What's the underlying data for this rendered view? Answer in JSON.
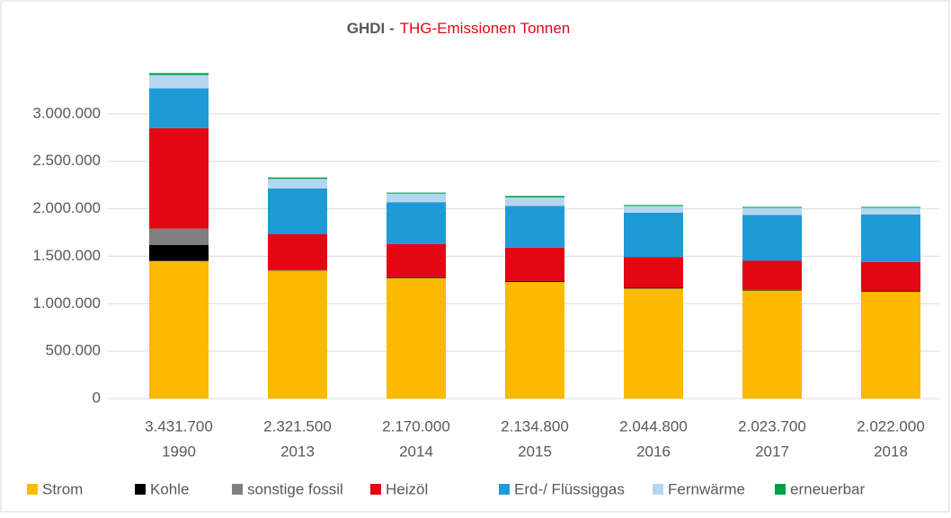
{
  "chart_data": {
    "type": "stacked-bar",
    "title_parts": [
      "GHDI -",
      "THG-Emissionen Tonnen"
    ],
    "categories": [
      [
        "3.431.700",
        "1990"
      ],
      [
        "2.321.500",
        "2013"
      ],
      [
        "2.170.000",
        "2014"
      ],
      [
        "2.134.800",
        "2015"
      ],
      [
        "2.044.800",
        "2016"
      ],
      [
        "2.023.700",
        "2017"
      ],
      [
        "2.022.000",
        "2018"
      ]
    ],
    "series": [
      {
        "name": "Strom",
        "color": "#fbb900",
        "values": [
          1450000,
          1350000,
          1270000,
          1230000,
          1160000,
          1140000,
          1125000
        ]
      },
      {
        "name": "Kohle",
        "color": "#000000",
        "values": [
          170000,
          5000,
          10000,
          10000,
          10000,
          5000,
          5000
        ]
      },
      {
        "name": "sonstige fossil",
        "color": "#7f7f7f",
        "values": [
          170000,
          0,
          0,
          0,
          0,
          0,
          0
        ]
      },
      {
        "name": "Heizöl",
        "color": "#e30613",
        "values": [
          1060000,
          380000,
          350000,
          350000,
          320000,
          310000,
          310000
        ]
      },
      {
        "name": "Erd-/ Flüssiggas",
        "color": "#1e9bd7",
        "values": [
          420000,
          480000,
          440000,
          440000,
          470000,
          480000,
          500000
        ]
      },
      {
        "name": "Fernwärme",
        "color": "#b4d7f0",
        "values": [
          140000,
          100000,
          90000,
          90000,
          70000,
          75000,
          70000
        ]
      },
      {
        "name": "erneuerbar",
        "color": "#00a04a",
        "values": [
          20000,
          15000,
          10000,
          15000,
          10000,
          10000,
          10000
        ]
      }
    ],
    "ylim": [
      0,
      3500000
    ],
    "yticks": [
      0,
      {
        "value": 500000,
        "label": "500.000"
      },
      {
        "value": 1000000,
        "label": "1.000.000"
      },
      {
        "value": 1500000,
        "label": "1.500.000"
      },
      {
        "value": 2000000,
        "label": "2.000.000"
      },
      {
        "value": 2500000,
        "label": "2.500.000"
      },
      {
        "value": 3000000,
        "label": "3.000.000"
      }
    ],
    "grid": true,
    "legend": "bottom"
  }
}
